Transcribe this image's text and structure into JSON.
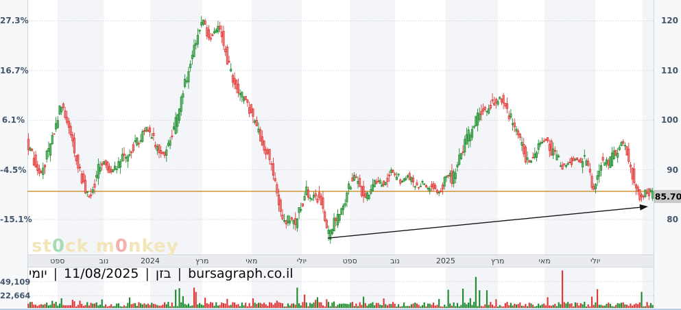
{
  "price_tag": {
    "value": "85.70"
  },
  "watermark": {
    "s1": "st",
    "o1": "0",
    "s2": "ck m",
    "o2": "0",
    "s3": "nkey"
  },
  "info_bar": {
    "separator": "|",
    "parts": [
      "יומי",
      "11/08/2025",
      "בזן",
      "bursagraph.co.il"
    ]
  },
  "chart_data": {
    "type": "candlestick",
    "title": "",
    "symbol": "בזן",
    "date": "11/08/2025",
    "interval": "יומי",
    "source": "bursagraph.co.il",
    "last_price": 85.7,
    "baseline_price": 94.25,
    "grid": true,
    "left_axis": {
      "unit": "%",
      "ticks": [
        {
          "label": "27.3%",
          "pct": 27.3
        },
        {
          "label": "16.7%",
          "pct": 16.7
        },
        {
          "label": "6.1%",
          "pct": 6.1
        },
        {
          "label": "-4.5%",
          "pct": -4.5
        },
        {
          "label": "-15.1%",
          "pct": -15.1
        }
      ]
    },
    "right_axis": {
      "ticks": [
        120,
        110,
        100,
        90,
        80
      ]
    },
    "x_axis": {
      "labels": [
        {
          "text": "ספט",
          "pos": 0.048
        },
        {
          "text": "נוב",
          "pos": 0.122
        },
        {
          "text": "2024",
          "pos": 0.196
        },
        {
          "text": "מרץ",
          "pos": 0.279
        },
        {
          "text": "מאי",
          "pos": 0.358
        },
        {
          "text": "יולי",
          "pos": 0.438
        },
        {
          "text": "ספט",
          "pos": 0.515
        },
        {
          "text": "נוב",
          "pos": 0.587
        },
        {
          "text": "2025",
          "pos": 0.668
        },
        {
          "text": "מרץ",
          "pos": 0.751
        },
        {
          "text": "מאי",
          "pos": 0.826
        },
        {
          "text": "יולי",
          "pos": 0.907
        }
      ]
    },
    "stripe_segments": [
      [
        0.048,
        0.122
      ],
      [
        0.196,
        0.279
      ],
      [
        0.358,
        0.438
      ],
      [
        0.515,
        0.587
      ],
      [
        0.668,
        0.751
      ],
      [
        0.826,
        0.907
      ],
      [
        0.982,
        1.0
      ]
    ],
    "candle_count": 340,
    "price_anchors": [
      [
        0.0,
        96.0
      ],
      [
        0.013,
        91.5
      ],
      [
        0.024,
        89.5
      ],
      [
        0.038,
        95.0
      ],
      [
        0.055,
        103.3
      ],
      [
        0.066,
        99.5
      ],
      [
        0.079,
        92.5
      ],
      [
        0.094,
        85.5
      ],
      [
        0.102,
        83.8
      ],
      [
        0.113,
        90.0
      ],
      [
        0.123,
        92.0
      ],
      [
        0.134,
        89.3
      ],
      [
        0.148,
        91.5
      ],
      [
        0.164,
        93.5
      ],
      [
        0.181,
        96.5
      ],
      [
        0.192,
        98.5
      ],
      [
        0.206,
        95.0
      ],
      [
        0.219,
        93.2
      ],
      [
        0.232,
        97.0
      ],
      [
        0.243,
        101.5
      ],
      [
        0.254,
        108.0
      ],
      [
        0.265,
        113.0
      ],
      [
        0.274,
        117.5
      ],
      [
        0.283,
        120.0
      ],
      [
        0.29,
        116.5
      ],
      [
        0.298,
        117.5
      ],
      [
        0.309,
        118.3
      ],
      [
        0.318,
        113.5
      ],
      [
        0.329,
        108.5
      ],
      [
        0.34,
        104.5
      ],
      [
        0.348,
        105.5
      ],
      [
        0.356,
        102.0
      ],
      [
        0.367,
        99.0
      ],
      [
        0.378,
        95.5
      ],
      [
        0.389,
        92.0
      ],
      [
        0.397,
        87.0
      ],
      [
        0.405,
        81.5
      ],
      [
        0.414,
        79.5
      ],
      [
        0.422,
        80.5
      ],
      [
        0.429,
        78.8
      ],
      [
        0.438,
        83.0
      ],
      [
        0.447,
        85.5
      ],
      [
        0.455,
        84.0
      ],
      [
        0.462,
        85.0
      ],
      [
        0.471,
        83.5
      ],
      [
        0.477,
        79.5
      ],
      [
        0.483,
        76.5
      ],
      [
        0.491,
        79.5
      ],
      [
        0.498,
        80.5
      ],
      [
        0.507,
        83.0
      ],
      [
        0.517,
        87.5
      ],
      [
        0.526,
        88.5
      ],
      [
        0.534,
        86.0
      ],
      [
        0.542,
        84.5
      ],
      [
        0.55,
        86.5
      ],
      [
        0.559,
        88.0
      ],
      [
        0.567,
        87.0
      ],
      [
        0.575,
        88.5
      ],
      [
        0.583,
        90.0
      ],
      [
        0.591,
        88.5
      ],
      [
        0.6,
        87.5
      ],
      [
        0.608,
        89.0
      ],
      [
        0.616,
        87.5
      ],
      [
        0.624,
        86.5
      ],
      [
        0.633,
        87.5
      ],
      [
        0.641,
        86.0
      ],
      [
        0.648,
        87.0
      ],
      [
        0.657,
        85.5
      ],
      [
        0.666,
        87.5
      ],
      [
        0.674,
        89.5
      ],
      [
        0.681,
        88.0
      ],
      [
        0.688,
        90.5
      ],
      [
        0.695,
        94.0
      ],
      [
        0.703,
        96.5
      ],
      [
        0.712,
        98.0
      ],
      [
        0.72,
        100.5
      ],
      [
        0.726,
        102.0
      ],
      [
        0.734,
        101.0
      ],
      [
        0.741,
        103.0
      ],
      [
        0.749,
        103.3
      ],
      [
        0.756,
        104.8
      ],
      [
        0.762,
        103.5
      ],
      [
        0.769,
        101.5
      ],
      [
        0.776,
        99.5
      ],
      [
        0.783,
        97.5
      ],
      [
        0.791,
        94.5
      ],
      [
        0.797,
        92.5
      ],
      [
        0.805,
        91.5
      ],
      [
        0.813,
        93.5
      ],
      [
        0.821,
        95.5
      ],
      [
        0.829,
        96.5
      ],
      [
        0.836,
        94.5
      ],
      [
        0.843,
        93.0
      ],
      [
        0.852,
        91.5
      ],
      [
        0.86,
        90.5
      ],
      [
        0.867,
        91.5
      ],
      [
        0.876,
        92.5
      ],
      [
        0.885,
        91.5
      ],
      [
        0.893,
        92.0
      ],
      [
        0.9,
        89.0
      ],
      [
        0.905,
        85.8
      ],
      [
        0.91,
        88.5
      ],
      [
        0.916,
        91.5
      ],
      [
        0.922,
        92.0
      ],
      [
        0.929,
        91.0
      ],
      [
        0.935,
        92.5
      ],
      [
        0.942,
        93.5
      ],
      [
        0.949,
        95.8
      ],
      [
        0.955,
        94.5
      ],
      [
        0.962,
        92.0
      ],
      [
        0.968,
        89.0
      ],
      [
        0.974,
        86.5
      ],
      [
        0.979,
        84.5
      ],
      [
        0.983,
        84.0
      ],
      [
        0.987,
        85.7
      ]
    ],
    "reference_line": {
      "price": 85.7,
      "color": "#c8820a"
    },
    "trend_arrow": {
      "from_pos": 0.4797,
      "from_price": 76.3,
      "to_pos": 0.9836,
      "to_price": 82.55
    },
    "volume_axis": {
      "levels": [
        {
          "label": "49,109",
          "value": 49109
        },
        {
          "label": "22,664",
          "value": 22664
        }
      ]
    },
    "volume_spikes": [
      [
        0.053,
        18000,
        "g"
      ],
      [
        0.118,
        16000,
        "g"
      ],
      [
        0.237,
        34000,
        "g"
      ],
      [
        0.243,
        37000,
        "g"
      ],
      [
        0.249,
        22000,
        "g"
      ],
      [
        0.266,
        38000,
        "r"
      ],
      [
        0.269,
        30000,
        "r"
      ],
      [
        0.285,
        19000,
        "r"
      ],
      [
        0.318,
        17000,
        "r"
      ],
      [
        0.361,
        18000,
        "r"
      ],
      [
        0.43,
        38000,
        "g"
      ],
      [
        0.444,
        25000,
        "r"
      ],
      [
        0.462,
        20000,
        "g"
      ],
      [
        0.536,
        21000,
        "g"
      ],
      [
        0.671,
        34000,
        "g"
      ],
      [
        0.695,
        36000,
        "g"
      ],
      [
        0.715,
        58000,
        "g"
      ],
      [
        0.723,
        33000,
        "g"
      ],
      [
        0.735,
        33000,
        "g"
      ],
      [
        0.83,
        20000,
        "r"
      ],
      [
        0.854,
        70000,
        "r"
      ],
      [
        0.9,
        21000,
        "r"
      ],
      [
        0.909,
        35000,
        "r"
      ],
      [
        0.98,
        30000,
        "g"
      ]
    ],
    "colors": {
      "up": "#1f8b2e",
      "up_fill": "#7cc184",
      "down": "#e23535",
      "down_fill": "#f19a97",
      "grid": "#c9cfd6",
      "stripe": "#f3f5f8",
      "band_bg": "#e9ebee",
      "margin_bg": "#f7f8fa",
      "plot_bg": "#ffffff",
      "border": "#d3d8dd",
      "ref_line": "#c8820a",
      "arrow": "#141414",
      "tag_bg": "#c9c9c9",
      "bottom_bar": "#b9cfe8"
    }
  }
}
